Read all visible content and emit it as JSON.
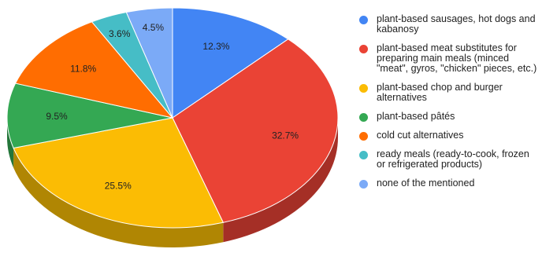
{
  "chart_data": {
    "type": "pie",
    "title": "",
    "legend_position": "right",
    "three_d": true,
    "slices": [
      {
        "label": "plant-based sausages, hot dogs and kabanosy",
        "value": 12.3,
        "display": "12.3%",
        "color": "#4285f4",
        "side": "#2b5cb0"
      },
      {
        "label": "plant-based meat substitutes for preparing main meals (minced \"meat\", gyros, \"chicken\" pieces, etc.)",
        "value": 32.7,
        "display": "32.7%",
        "color": "#ea4335",
        "side": "#a52f26"
      },
      {
        "label": "plant-based chop and burger alternatives",
        "value": 25.5,
        "display": "25.5%",
        "color": "#fbbc04",
        "side": "#b08603"
      },
      {
        "label": "plant-based pâtés",
        "value": 9.5,
        "display": "9.5%",
        "color": "#34a853",
        "side": "#24763a"
      },
      {
        "label": "cold cut alternatives",
        "value": 11.8,
        "display": "11.8%",
        "color": "#ff6d01",
        "side": "#b34d01"
      },
      {
        "label": "ready meals (ready-to-cook, frozen or refrigerated products)",
        "value": 3.6,
        "display": "3.6%",
        "color": "#46bdc6",
        "side": "#31848b"
      },
      {
        "label": "none of the mentioned",
        "value": 4.5,
        "display": "4.5%",
        "color": "#7baaf7",
        "side": "#5677ad"
      }
    ]
  }
}
